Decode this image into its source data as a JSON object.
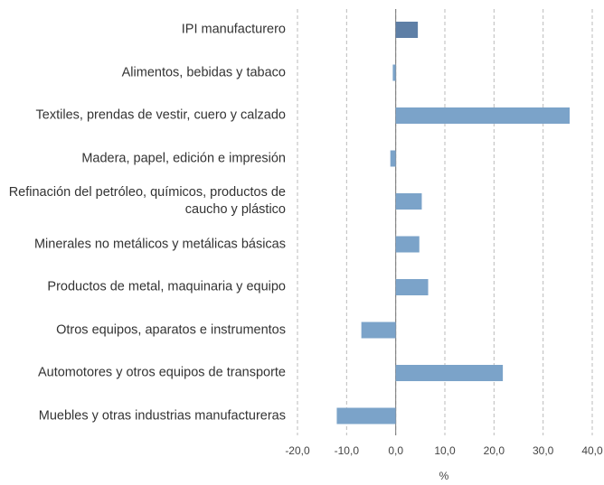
{
  "chart_data": {
    "type": "barh",
    "categories": [
      "IPI manufacturero",
      "Alimentos, bebidas y tabaco",
      "Textiles, prendas de vestir, cuero y calzado",
      "Madera, papel, edición e impresión",
      "Refinación del petróleo, químicos, productos de caucho y plástico",
      "Minerales no metálicos y metálicas básicas",
      "Productos de metal, maquinaria y equipo",
      "Otros equipos, aparatos e instrumentos",
      "Automotores y otros equipos de transporte",
      "Muebles y otras industrias manufactureras"
    ],
    "values": [
      4.5,
      -0.6,
      35.4,
      -1.1,
      5.3,
      4.8,
      6.6,
      -7.0,
      21.8,
      -12.0
    ],
    "colors": [
      "#5e7fa6",
      "#7ba3c9",
      "#7ba3c9",
      "#7ba3c9",
      "#7ba3c9",
      "#7ba3c9",
      "#7ba3c9",
      "#7ba3c9",
      "#7ba3c9",
      "#7ba3c9"
    ],
    "xlabel": "%",
    "xlim": [
      -20,
      40
    ],
    "xticks": [
      {
        "value": -20,
        "label": "-20,0"
      },
      {
        "value": -10,
        "label": "-10,0"
      },
      {
        "value": 0,
        "label": "0,0"
      },
      {
        "value": 10,
        "label": "10,0"
      },
      {
        "value": 20,
        "label": "20,0"
      },
      {
        "value": 30,
        "label": "30,0"
      },
      {
        "value": 40,
        "label": "40,0"
      }
    ],
    "grid": true
  }
}
